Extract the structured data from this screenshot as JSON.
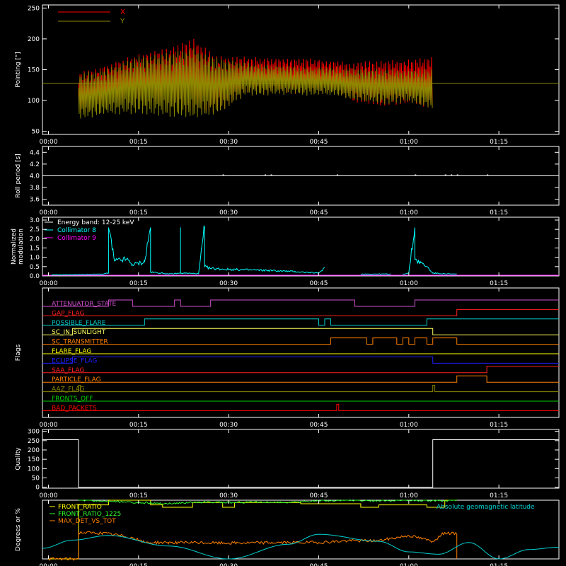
{
  "chart_data": [
    {
      "type": "line",
      "ylabel": "Pointing [\"]",
      "ylim": [
        45,
        255
      ],
      "yticks": [
        "50",
        "100",
        "150",
        "200",
        "250"
      ],
      "xticks": [
        "00:00",
        "00:15",
        "00:30",
        "00:45",
        "01:00",
        "01:15"
      ],
      "legend": {
        "placement": "top-left",
        "entries": [
          {
            "name": "X",
            "color": "#ff0000"
          },
          {
            "name": "Y",
            "color": "#8c8a00"
          }
        ]
      },
      "series": [
        {
          "name": "X",
          "color": "#ff0000",
          "start": "00:05",
          "end": "01:04",
          "env_t": [
            "00:05",
            "00:10",
            "00:15",
            "00:20",
            "00:24",
            "00:28",
            "00:33",
            "00:40",
            "00:48",
            "00:51",
            "00:55",
            "01:00",
            "01:04"
          ],
          "env_hi": [
            145,
            158,
            175,
            184,
            200,
            172,
            170,
            168,
            165,
            160,
            165,
            165,
            172
          ],
          "env_lo": [
            78,
            92,
            95,
            90,
            82,
            80,
            112,
            112,
            112,
            98,
            92,
            95,
            88
          ]
        },
        {
          "name": "Y",
          "color": "#8c8a00",
          "start": "00:05",
          "end": "01:04",
          "env_t": [
            "00:05",
            "00:10",
            "00:15",
            "00:20",
            "00:24",
            "00:28",
            "00:33",
            "00:40",
            "00:48",
            "00:51",
            "00:55",
            "01:00",
            "01:04"
          ],
          "env_hi": [
            142,
            152,
            170,
            176,
            185,
            168,
            160,
            155,
            152,
            150,
            150,
            148,
            152
          ],
          "env_lo": [
            70,
            78,
            80,
            75,
            72,
            78,
            110,
            110,
            108,
            100,
            95,
            98,
            85
          ]
        }
      ],
      "reference_level": 128
    },
    {
      "type": "line",
      "ylabel": "Roll period [s]",
      "ylim": [
        3.5,
        4.5
      ],
      "yticks": [
        "3.6",
        "3.8",
        "4.0",
        "4.2",
        "4.4"
      ],
      "xticks": [
        "00:00",
        "00:15",
        "00:30",
        "00:45",
        "01:00",
        "01:15"
      ],
      "series": [
        {
          "name": "",
          "color": "#ffffff",
          "value": 4.0,
          "start": "00:05",
          "end": "01:04",
          "blips": [
            "00:29",
            "00:36",
            "00:37",
            "00:48",
            "01:01",
            "01:06",
            "01:07",
            "01:08",
            "01:13"
          ]
        }
      ]
    },
    {
      "type": "line",
      "ylabel": "Normalized modulation",
      "ylim": [
        0,
        3.0
      ],
      "yticks": [
        "0.0",
        "0.5",
        "1.0",
        "1.5",
        "2.0",
        "2.5",
        "3.0"
      ],
      "xticks": [
        "00:00",
        "00:15",
        "00:30",
        "00:45",
        "01:00",
        "01:15"
      ],
      "legend": {
        "placement": "top-left",
        "entries": [
          {
            "name": "Energy band: 12-25 keV",
            "color": "#ffffff"
          },
          {
            "name": "Collimator 8",
            "color": "#00ffff"
          },
          {
            "name": "Collimator 9",
            "color": "#ff00ff"
          }
        ]
      },
      "series": [
        {
          "name": "Collimator 8",
          "color": "#00ffff",
          "segments": [
            {
              "t": [
                "00:00:30",
                "00:05",
                "00:09",
                "00:10",
                "00:10",
                "00:11",
                "00:13",
                "00:14",
                "00:16",
                "00:17",
                "00:17",
                "00:19",
                "00:20",
                "00:22",
                "00:22",
                "00:22",
                "00:23",
                "00:25",
                "00:26",
                "00:26",
                "00:27",
                "00:30",
                "00:36",
                "00:40",
                "00:45",
                "00:46"
              ],
              "v": [
                0.05,
                0.07,
                0.1,
                0.15,
                2.6,
                0.8,
                0.9,
                0.6,
                0.75,
                2.6,
                0.2,
                0.15,
                0.1,
                0.15,
                2.6,
                0.15,
                0.15,
                0.12,
                2.6,
                0.5,
                0.4,
                0.35,
                0.3,
                0.25,
                0.15,
                0.45
              ]
            },
            {
              "t": [
                "00:52",
                "00:57"
              ],
              "v": [
                0.1,
                0.1
              ]
            },
            {
              "t": [
                "00:59",
                "01:00",
                "01:01",
                "01:01",
                "01:02",
                "01:03",
                "01:04",
                "01:07",
                "01:08"
              ],
              "v": [
                0.1,
                0.15,
                2.6,
                0.9,
                0.7,
                0.5,
                0.15,
                0.1,
                0.1
              ]
            }
          ]
        },
        {
          "name": "Collimator 9",
          "color": "#ff00ff",
          "value": 0.0,
          "start": "-00:01",
          "end": "01:25"
        }
      ]
    },
    {
      "type": "line",
      "ylabel": "Flags",
      "xticks": [
        "00:00",
        "00:15",
        "00:30",
        "00:45",
        "01:00",
        "01:15"
      ],
      "flags": [
        {
          "name": "ATTENUATOR_STATE",
          "color": "#d050d0",
          "changes": [
            "00:10",
            "00:14",
            "00:21",
            "00:22",
            "00:27",
            "00:51",
            "01:01"
          ]
        },
        {
          "name": "GAP_FLAG",
          "color": "#ff2020",
          "changes": [
            "01:08"
          ]
        },
        {
          "name": "POSSIBLE_FLARE",
          "color": "#00d0d0",
          "changes": [
            "00:16",
            "00:45",
            "00:46",
            "00:47",
            "01:03"
          ]
        },
        {
          "name": "SC_IN_SUNLIGHT",
          "color": "#ffff60",
          "changes": [
            "00:04",
            "01:04"
          ]
        },
        {
          "name": "SC_TRANSMITTER",
          "color": "#ff8000",
          "changes": [
            "00:47",
            "00:53",
            "00:54",
            "00:58",
            "00:59",
            "01:00",
            "01:01",
            "01:03",
            "01:04",
            "01:08"
          ]
        },
        {
          "name": "FLARE_FLAG",
          "color": "#ffff00",
          "changes": []
        },
        {
          "name": "ECLIPSE_FLAG",
          "color": "#2020ff",
          "changes": [
            "00:04",
            "01:04"
          ]
        },
        {
          "name": "SAA_FLAG",
          "color": "#ff2020",
          "changes": [
            "01:13"
          ]
        },
        {
          "name": "PARTICLE_FLAG",
          "color": "#ff8000",
          "changes": [
            "01:08",
            "01:13"
          ]
        },
        {
          "name": "AAZ_FLAG",
          "color": "#8c8a00",
          "changes": [
            "00:05:00",
            "00:05:20",
            "01:04:00",
            "01:04:20"
          ]
        },
        {
          "name": "FRONTS_OFF",
          "color": "#00d000",
          "changes": []
        },
        {
          "name": "BAD_PACKETS",
          "color": "#ff0000",
          "changes": [
            "00:48:00",
            "00:48:20"
          ]
        }
      ]
    },
    {
      "type": "line",
      "ylabel": "Quality",
      "ylim": [
        -5,
        310
      ],
      "yticks": [
        "0",
        "50",
        "100",
        "150",
        "200",
        "250",
        "300"
      ],
      "xticks": [
        "00:00",
        "00:15",
        "00:30",
        "00:45",
        "01:00",
        "01:15"
      ],
      "series": [
        {
          "name": "",
          "color": "#ffffff",
          "t": [
            "-00:01",
            "00:05",
            "00:05",
            "01:04",
            "01:04",
            "01:25"
          ],
          "v": [
            255,
            255,
            0,
            0,
            255,
            255
          ]
        }
      ]
    },
    {
      "type": "line",
      "ylabel": "Degrees or %",
      "ylim": [
        0,
        100
      ],
      "xticks": [
        "00:00",
        "00:15",
        "00:30",
        "00:45",
        "01:00",
        "01:15"
      ],
      "legend": {
        "placement": "top-left",
        "entries": [
          {
            "name": "FRONT_RATIO",
            "color": "#ffff00"
          },
          {
            "name": "FRONT_RATIO_1225",
            "color": "#30ff30"
          },
          {
            "name": "MAX_DET_VS_TOT",
            "color": "#ff8000"
          },
          {
            "name": "Absolute geomagnetic latitude",
            "color": "#00d0d0"
          }
        ]
      },
      "series": [
        {
          "name": "FRONT_RATIO",
          "color": "#ffff00",
          "t": [
            "00:00",
            "00:05",
            "00:05",
            "00:10",
            "00:10",
            "00:17",
            "00:17",
            "00:19",
            "00:19",
            "00:24",
            "00:24",
            "00:29",
            "00:29",
            "00:31",
            "00:31",
            "00:42",
            "00:42",
            "00:52",
            "00:52",
            "00:55",
            "00:55",
            "01:03",
            "01:03",
            "01:06",
            "01:06",
            "01:08"
          ],
          "v": [
            0,
            0,
            92,
            92,
            100,
            100,
            92,
            92,
            88,
            88,
            96,
            96,
            88,
            88,
            96,
            96,
            94,
            94,
            88,
            88,
            92,
            92,
            88,
            88,
            100,
            100
          ]
        },
        {
          "name": "FRONT_RATIO_1225",
          "color": "#30ff30",
          "t": [
            "00:05",
            "00:10",
            "00:15",
            "00:20",
            "00:25",
            "00:30",
            "00:35",
            "00:40",
            "00:45",
            "00:50",
            "00:55",
            "01:00",
            "01:05",
            "01:08"
          ],
          "v": [
            100,
            98,
            96,
            94,
            97,
            96,
            97,
            96,
            99,
            100,
            99,
            100,
            99,
            100
          ]
        },
        {
          "name": "MAX_DET_VS_TOT",
          "color": "#ff8000",
          "t": [
            "00:00",
            "00:05",
            "00:05",
            "00:09",
            "00:12",
            "00:14",
            "00:16",
            "00:20",
            "00:30",
            "00:40",
            "00:45",
            "00:50",
            "00:55",
            "01:00",
            "01:04",
            "01:06",
            "01:08",
            "01:08"
          ],
          "v": [
            0,
            0,
            45,
            44,
            40,
            36,
            28,
            28,
            27,
            28,
            28,
            31,
            31,
            40,
            30,
            45,
            42,
            0
          ]
        },
        {
          "name": "Absolute geomagnetic latitude",
          "color": "#00d0d0",
          "t": [
            "-00:01",
            "00:04",
            "00:10",
            "00:20",
            "00:30",
            "00:40",
            "00:45",
            "00:55",
            "01:00",
            "01:05",
            "01:10",
            "01:15",
            "01:20",
            "01:25"
          ],
          "v": [
            18,
            32,
            40,
            22,
            0,
            25,
            42,
            30,
            12,
            8,
            28,
            0,
            16,
            20
          ]
        }
      ]
    }
  ]
}
